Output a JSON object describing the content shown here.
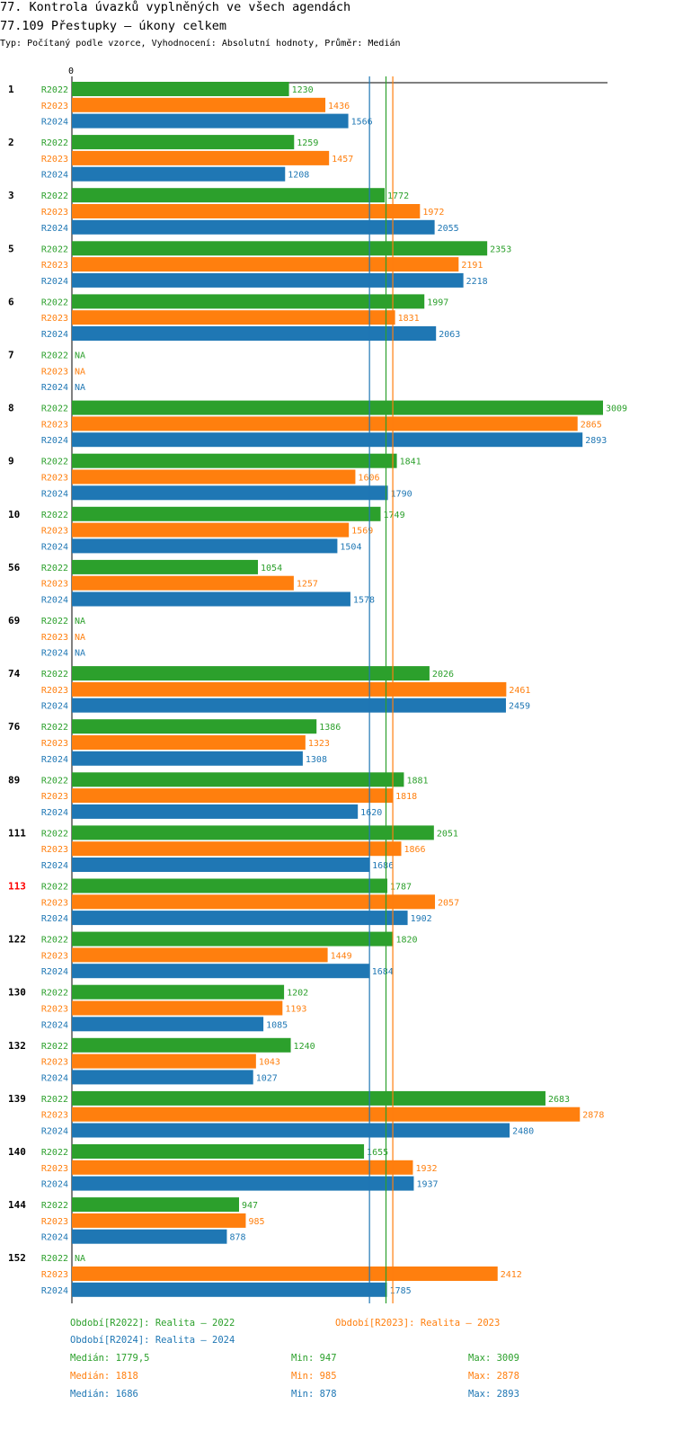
{
  "header": {
    "title": "77. Kontrola úvazků vyplněných ve všech agendách",
    "subtitle": "77.109 Přestupky – úkony celkem",
    "info": "Typ: Počítaný podle vzorce, Vyhodnocení: Absolutní hodnoty, Průměr: Medián"
  },
  "colors": {
    "R2022": "#2ca02c",
    "R2023": "#ff7f0e",
    "R2024": "#1f77b4",
    "highlight": "#ff0000"
  },
  "chart_data": {
    "type": "bar",
    "orientation": "horizontal",
    "x_zero_label": "0",
    "xlim": [
      0,
      3009
    ],
    "na_label": "NA",
    "series_names": [
      "R2022",
      "R2023",
      "R2024"
    ],
    "highlighted_category": "113",
    "categories": [
      {
        "label": "1",
        "values": [
          1230,
          1436,
          1566
        ]
      },
      {
        "label": "2",
        "values": [
          1259,
          1457,
          1208
        ]
      },
      {
        "label": "3",
        "values": [
          1772,
          1972,
          2055
        ]
      },
      {
        "label": "5",
        "values": [
          2353,
          2191,
          2218
        ]
      },
      {
        "label": "6",
        "values": [
          1997,
          1831,
          2063
        ]
      },
      {
        "label": "7",
        "values": [
          null,
          null,
          null
        ]
      },
      {
        "label": "8",
        "values": [
          3009,
          2865,
          2893
        ]
      },
      {
        "label": "9",
        "values": [
          1841,
          1606,
          1790
        ]
      },
      {
        "label": "10",
        "values": [
          1749,
          1569,
          1504
        ]
      },
      {
        "label": "56",
        "values": [
          1054,
          1257,
          1578
        ]
      },
      {
        "label": "69",
        "values": [
          null,
          null,
          null
        ]
      },
      {
        "label": "74",
        "values": [
          2026,
          2461,
          2459
        ]
      },
      {
        "label": "76",
        "values": [
          1386,
          1323,
          1308
        ]
      },
      {
        "label": "89",
        "values": [
          1881,
          1818,
          1620
        ]
      },
      {
        "label": "111",
        "values": [
          2051,
          1866,
          1686
        ]
      },
      {
        "label": "113",
        "values": [
          1787,
          2057,
          1902
        ]
      },
      {
        "label": "122",
        "values": [
          1820,
          1449,
          1684
        ]
      },
      {
        "label": "130",
        "values": [
          1202,
          1193,
          1085
        ]
      },
      {
        "label": "132",
        "values": [
          1240,
          1043,
          1027
        ]
      },
      {
        "label": "139",
        "values": [
          2683,
          2878,
          2480
        ]
      },
      {
        "label": "140",
        "values": [
          1655,
          1932,
          1937
        ]
      },
      {
        "label": "144",
        "values": [
          947,
          985,
          878
        ]
      },
      {
        "label": "152",
        "values": [
          null,
          2412,
          1785
        ]
      }
    ],
    "reference_lines": [
      {
        "series": "R2022",
        "name": "Medián",
        "value": 1779.5
      },
      {
        "series": "R2023",
        "name": "Medián",
        "value": 1818
      },
      {
        "series": "R2024",
        "name": "Medián",
        "value": 1686
      }
    ]
  },
  "legend": {
    "r2022": "Období[R2022]: Realita – 2022",
    "r2023": "Období[R2023]: Realita – 2023",
    "r2024": "Období[R2024]: Realita – 2024"
  },
  "stats": [
    {
      "series": "R2022",
      "median": "Medián: 1779,5",
      "min": "Min: 947",
      "max": "Max: 3009"
    },
    {
      "series": "R2023",
      "median": "Medián: 1818",
      "min": "Min: 985",
      "max": "Max: 2878"
    },
    {
      "series": "R2024",
      "median": "Medián: 1686",
      "min": "Min: 878",
      "max": "Max: 2893"
    }
  ]
}
